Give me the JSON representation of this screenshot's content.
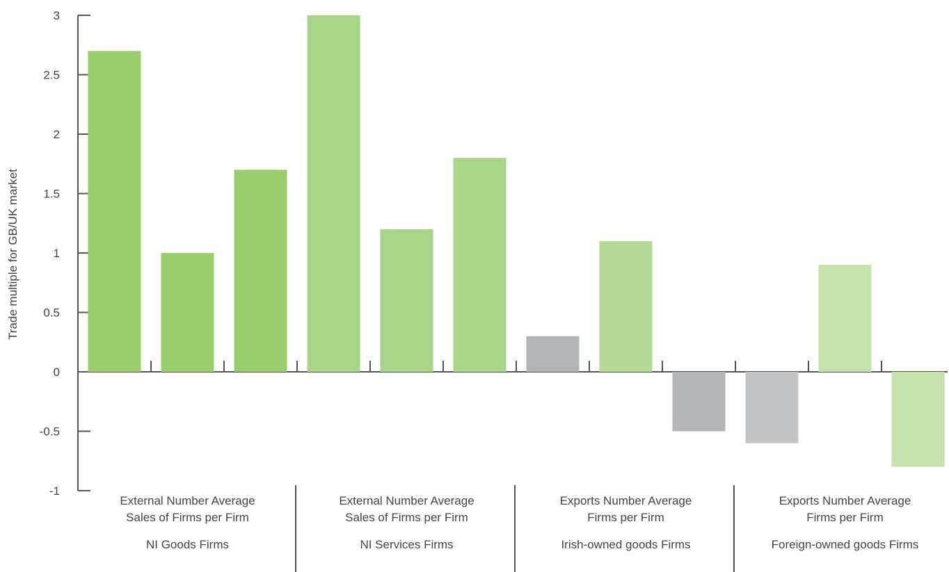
{
  "chart_data": {
    "type": "bar",
    "ylabel": "Trade multiple for GB/UK market",
    "ylim": [
      -1,
      3
    ],
    "yticks": [
      "3",
      "2.5",
      "2",
      "1.5",
      "1",
      "0.5",
      "0",
      "-0.5",
      "-1"
    ],
    "groups": [
      {
        "line1": "External Number Average",
        "line2": "Sales of Firms per Firm",
        "line3": "NI Goods Firms",
        "values": [
          2.7,
          1.0,
          1.7
        ],
        "colors": [
          "#9acd6c",
          "#9acd6c",
          "#9acd6c"
        ]
      },
      {
        "line1": "External Number Average",
        "line2": "Sales of Firms per Firm",
        "line3": "NI Services Firms",
        "values": [
          3.0,
          1.2,
          1.8
        ],
        "colors": [
          "#a8d587",
          "#a8d587",
          "#a8d587"
        ]
      },
      {
        "line1": "Exports Number Average",
        "line2": "Firms per Firm",
        "line3": "Irish-owned goods Firms",
        "values": [
          0.3,
          1.1,
          -0.5
        ],
        "colors": [
          "#b3b4b7",
          "#b5da98",
          "#b3b4b7"
        ]
      },
      {
        "line1": "Exports Number Average",
        "line2": "Firms per Firm",
        "line3": "Foreign-owned goods Firms",
        "values": [
          -0.6,
          0.9,
          -0.8
        ],
        "colors": [
          "#c4c5c7",
          "#c7e3ad",
          "#c7e3ad"
        ]
      }
    ]
  }
}
